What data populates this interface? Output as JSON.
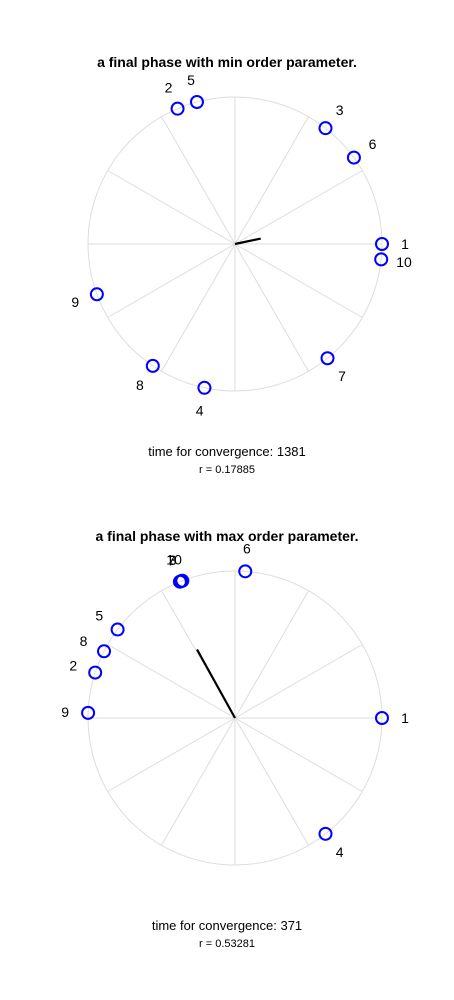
{
  "colors": {
    "marker": "#0000ff",
    "grid": "#dddddd",
    "vector": "#000000"
  },
  "chart_data": [
    {
      "type": "scatter",
      "projection": "polar-unit-circle",
      "title": "a final phase with min order parameter.",
      "convergence_label": "time for convergence: 1381",
      "r_label": "r = 0.17885",
      "grid": true,
      "spokes_deg": [
        0,
        30,
        60,
        90,
        120,
        150,
        180,
        210,
        240,
        270,
        300,
        330
      ],
      "points": [
        {
          "label": "1",
          "angle_deg": 0
        },
        {
          "label": "10",
          "angle_deg": -6
        },
        {
          "label": "6",
          "angle_deg": 36
        },
        {
          "label": "3",
          "angle_deg": 52
        },
        {
          "label": "5",
          "angle_deg": 105
        },
        {
          "label": "2",
          "angle_deg": 113
        },
        {
          "label": "9",
          "angle_deg": 200
        },
        {
          "label": "8",
          "angle_deg": 236
        },
        {
          "label": "4",
          "angle_deg": 258
        },
        {
          "label": "7",
          "angle_deg": 309
        }
      ],
      "order_parameter": {
        "r": 0.17885,
        "angle_deg": 12
      }
    },
    {
      "type": "scatter",
      "projection": "polar-unit-circle",
      "title": "a final phase with max order parameter.",
      "convergence_label": "time for convergence: 371",
      "r_label": "r = 0.53281",
      "grid": true,
      "spokes_deg": [
        0,
        30,
        60,
        90,
        120,
        150,
        180,
        210,
        240,
        270,
        300,
        330
      ],
      "points": [
        {
          "label": "1",
          "angle_deg": 0
        },
        {
          "label": "6",
          "angle_deg": 86
        },
        {
          "label": "10",
          "angle_deg": 111
        },
        {
          "label": "3",
          "angle_deg": 111.5
        },
        {
          "label": "7",
          "angle_deg": 112
        },
        {
          "label": "5",
          "angle_deg": 143
        },
        {
          "label": "8",
          "angle_deg": 153
        },
        {
          "label": "2",
          "angle_deg": 162
        },
        {
          "label": "9",
          "angle_deg": 178
        },
        {
          "label": "4",
          "angle_deg": 308
        }
      ],
      "order_parameter": {
        "r": 0.53281,
        "angle_deg": 119
      }
    }
  ]
}
